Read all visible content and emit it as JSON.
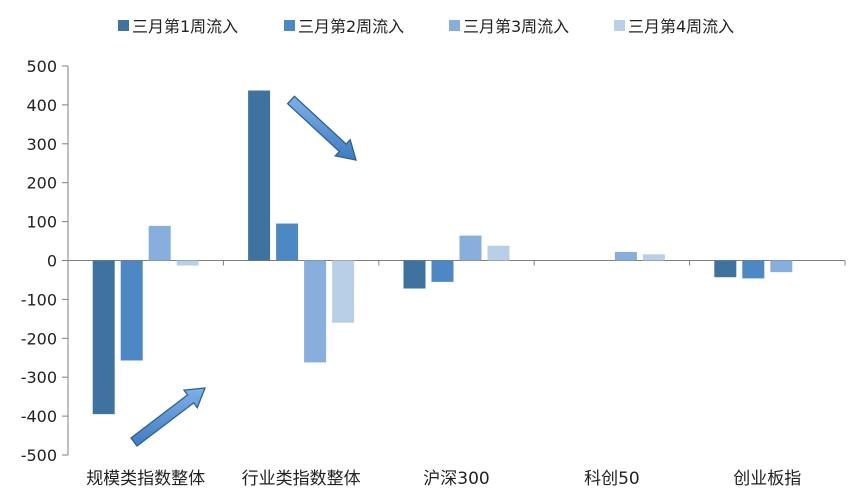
{
  "chart_data": {
    "type": "bar",
    "categories": [
      "规模类指数整体",
      "行业类指数整体",
      "沪深300",
      "科创50",
      "创业板指"
    ],
    "series": [
      {
        "name": "三月第1周流入",
        "color": "#40729f",
        "values": [
          -395,
          437,
          -72,
          0,
          -43
        ]
      },
      {
        "name": "三月第2周流入",
        "color": "#4d88c4",
        "values": [
          -257,
          95,
          -55,
          0,
          -46
        ]
      },
      {
        "name": "三月第3周流入",
        "color": "#88aedd",
        "values": [
          89,
          -262,
          64,
          22,
          -30
        ]
      },
      {
        "name": "三月第4周流入",
        "color": "#b9cfe8",
        "values": [
          -13,
          -160,
          38,
          16,
          0
        ]
      }
    ],
    "ylim": [
      -500,
      500
    ],
    "yticks": [
      500,
      400,
      300,
      200,
      100,
      0,
      -100,
      -200,
      -300,
      -400,
      -500
    ],
    "legend_position": "top",
    "grid": false,
    "annotations": [
      "arrow-up-right",
      "arrow-down-right"
    ]
  }
}
